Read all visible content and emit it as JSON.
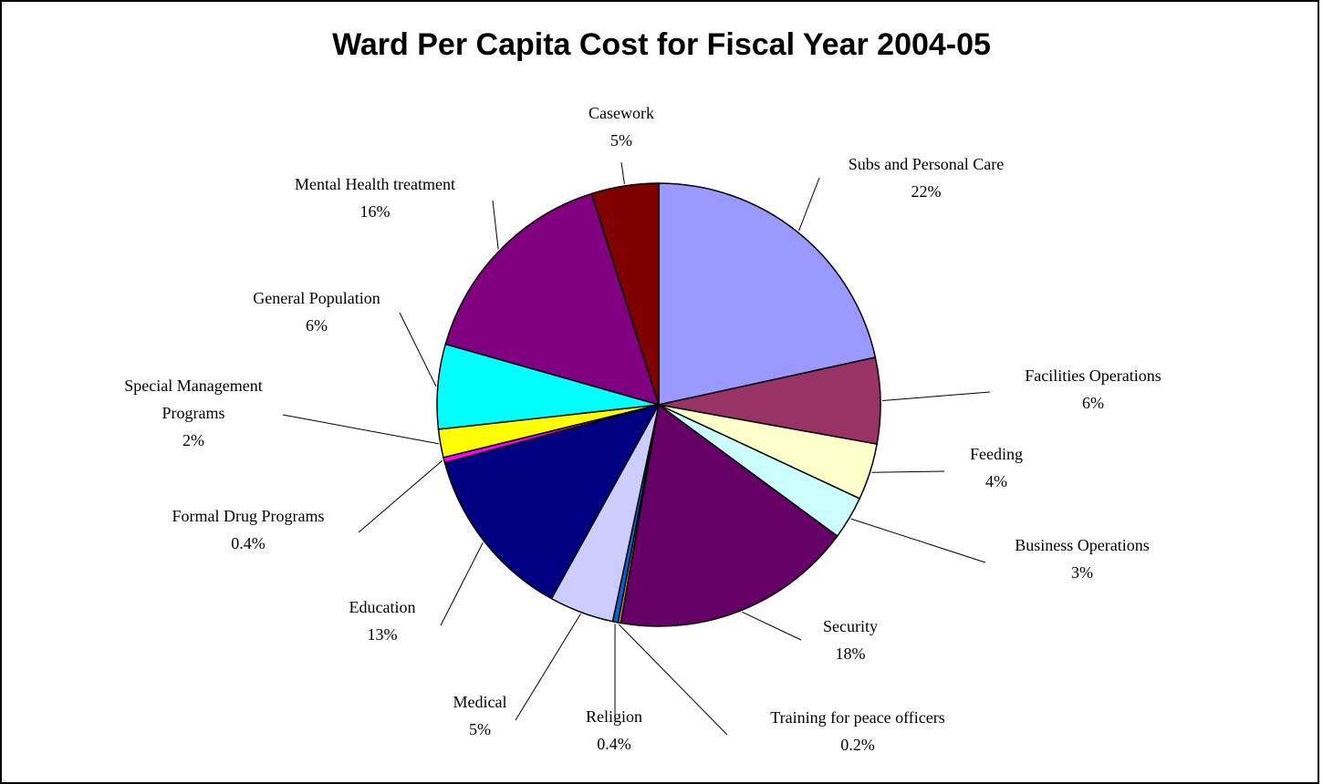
{
  "chart_data": {
    "type": "pie",
    "title": "Ward Per Capita Cost for Fiscal Year 2004-05",
    "slices": [
      {
        "label": "Subs and Personal Care",
        "percent_label": "22%",
        "value": 22.0,
        "color": "#9999ff"
      },
      {
        "label": "Facilities Operations",
        "percent_label": "6%",
        "value": 6.4,
        "color": "#993366"
      },
      {
        "label": "Feeding",
        "percent_label": "4%",
        "value": 4.2,
        "color": "#ffffcc"
      },
      {
        "label": "Business Operations",
        "percent_label": "3%",
        "value": 3.2,
        "color": "#ccffff"
      },
      {
        "label": "Security",
        "percent_label": "18%",
        "value": 18.0,
        "color": "#660066"
      },
      {
        "label": "Training for peace officers",
        "percent_label": "0.2%",
        "value": 0.2,
        "color": "#ff8080"
      },
      {
        "label": "Religion",
        "percent_label": "0.4%",
        "value": 0.4,
        "color": "#0066cc"
      },
      {
        "label": "Medical",
        "percent_label": "5%",
        "value": 4.8,
        "color": "#ccccff"
      },
      {
        "label": "Education",
        "percent_label": "13%",
        "value": 13.0,
        "color": "#000080"
      },
      {
        "label": "Formal Drug Programs",
        "percent_label": "0.4%",
        "value": 0.4,
        "color": "#ff00ff"
      },
      {
        "label": "Special Management Programs",
        "percent_label": "2%",
        "value": 2.1,
        "color": "#ffff00"
      },
      {
        "label": "General Population",
        "percent_label": "6%",
        "value": 6.3,
        "color": "#00ffff"
      },
      {
        "label": "Mental Health treatment",
        "percent_label": "16%",
        "value": 16.0,
        "color": "#800080"
      },
      {
        "label": "Casework",
        "percent_label": "5%",
        "value": 5.0,
        "color": "#800000"
      }
    ]
  }
}
